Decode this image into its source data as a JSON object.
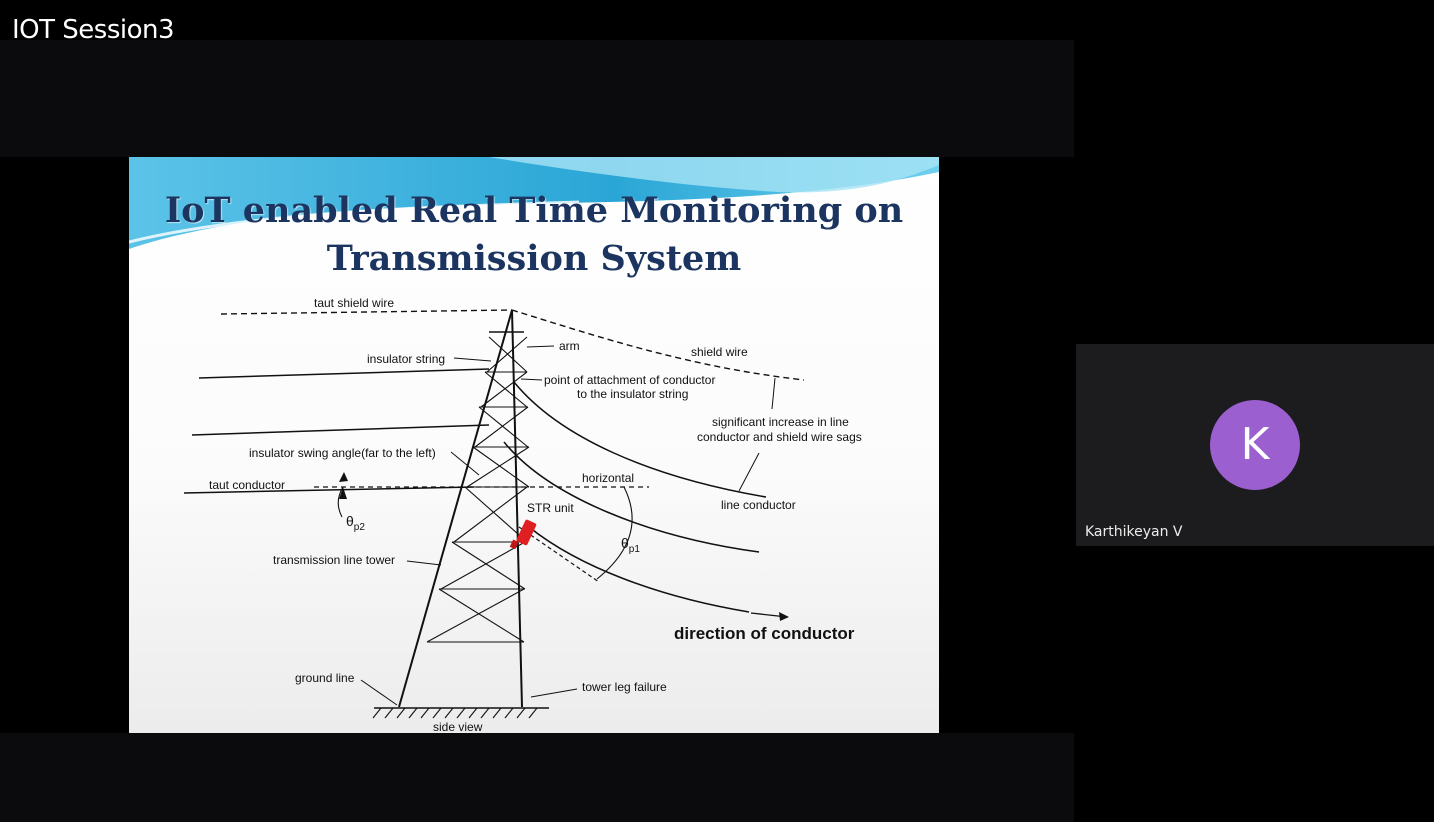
{
  "meeting": {
    "title": "IOT Session3"
  },
  "slide": {
    "title_line1": "IoT enabled Real Time Monitoring on",
    "title_line2": "Transmission System",
    "labels": {
      "taut_shield_wire": "taut shield wire",
      "insulator_string": "insulator string",
      "arm": "arm",
      "shield_wire": "shield wire",
      "attachment_line1": "point of attachment of conductor",
      "attachment_line2": "to the insulator string",
      "sag_line1": "significant increase in line",
      "sag_line2": "conductor and shield wire sags",
      "swing_angle": "insulator swing angle(far to the left)",
      "taut_conductor": "taut conductor",
      "horizontal": "horizontal",
      "theta_p2": "θ",
      "theta_p2_sub": "p2",
      "theta_p1": "θ",
      "theta_p1_sub": "p1",
      "str_unit": "STR unit",
      "line_conductor": "line conductor",
      "tower": "transmission line tower",
      "direction": "direction of conductor",
      "ground_line": "ground line",
      "tower_leg_failure": "tower leg failure",
      "side_view": "side view"
    },
    "colors": {
      "title": "#1c3560",
      "str_unit": "#e02020",
      "banner": "#4fb8e0"
    }
  },
  "participant": {
    "initial": "K",
    "name": "Karthikeyan V",
    "avatar_color": "#9b5fd0"
  }
}
